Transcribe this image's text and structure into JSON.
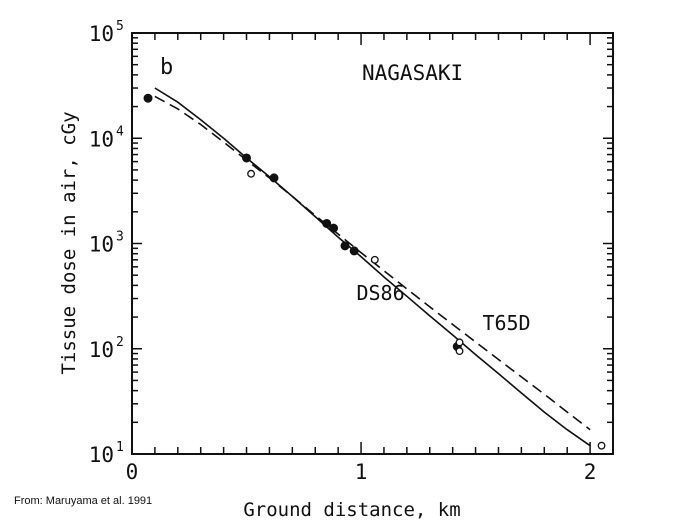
{
  "chart_data": {
    "type": "scatter",
    "panel_label": "b",
    "title": "NAGASAKI",
    "xlabel": "Ground distance, km",
    "ylabel": "Tissue dose in air, cGy",
    "xlim": [
      0,
      2.1
    ],
    "ylim": [
      10,
      100000
    ],
    "yscale": "log",
    "x_ticks": [
      "0",
      "1",
      "2"
    ],
    "y_ticks": [
      {
        "base": "10",
        "exp": "1"
      },
      {
        "base": "10",
        "exp": "2"
      },
      {
        "base": "10",
        "exp": "3"
      },
      {
        "base": "10",
        "exp": "4"
      },
      {
        "base": "10",
        "exp": "5"
      }
    ],
    "grid": false,
    "series": [
      {
        "name": "DS86",
        "style": "solid",
        "x": [
          0.1,
          0.2,
          0.3,
          0.4,
          0.5,
          0.6,
          0.7,
          0.8,
          0.9,
          1.0,
          1.1,
          1.2,
          1.3,
          1.4,
          1.5,
          1.6,
          1.7,
          1.8,
          1.9,
          2.0
        ],
        "y": [
          30000,
          22000,
          15000,
          10000,
          6500,
          4300,
          2800,
          1800,
          1150,
          750,
          480,
          315,
          205,
          135,
          88,
          58,
          38,
          25,
          17,
          12
        ]
      },
      {
        "name": "T65D",
        "style": "dashed",
        "x": [
          0.1,
          0.2,
          0.3,
          0.4,
          0.5,
          0.6,
          0.7,
          0.8,
          0.9,
          1.0,
          1.1,
          1.2,
          1.3,
          1.4,
          1.5,
          1.6,
          1.7,
          1.8,
          1.9,
          2.0
        ],
        "y": [
          25000,
          19000,
          13500,
          9200,
          6200,
          4200,
          2800,
          1850,
          1230,
          820,
          550,
          370,
          250,
          170,
          116,
          79,
          54,
          37,
          25,
          17
        ]
      }
    ],
    "points_filled": [
      {
        "x": 0.07,
        "y": 24000
      },
      {
        "x": 0.5,
        "y": 6500
      },
      {
        "x": 0.62,
        "y": 4200
      },
      {
        "x": 0.85,
        "y": 1550
      },
      {
        "x": 0.88,
        "y": 1400
      },
      {
        "x": 0.93,
        "y": 950
      },
      {
        "x": 0.97,
        "y": 850
      },
      {
        "x": 1.42,
        "y": 105
      }
    ],
    "points_open": [
      {
        "x": 0.52,
        "y": 4600
      },
      {
        "x": 1.06,
        "y": 700
      },
      {
        "x": 1.43,
        "y": 115
      },
      {
        "x": 1.43,
        "y": 95
      },
      {
        "x": 2.05,
        "y": 12
      }
    ],
    "curve_labels": [
      {
        "text": "DS86",
        "x": 0.98,
        "y": 290
      },
      {
        "text": "T65D",
        "x": 1.53,
        "y": 150
      }
    ]
  },
  "credit": "From: Maruyama et al. 1991"
}
